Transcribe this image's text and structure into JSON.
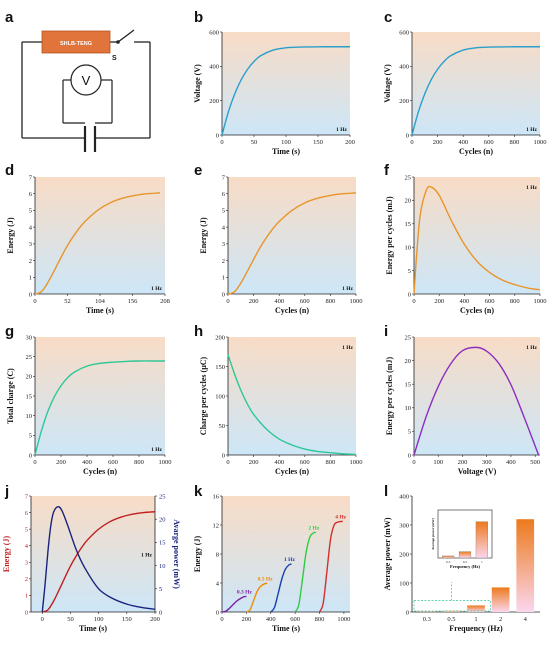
{
  "colors": {
    "blue": "#2b9fcb",
    "orange": "#e8952a",
    "green": "#2ec796",
    "purple": "#8b2fbf",
    "red": "#c01f1f",
    "navy": "#1a237e",
    "bg_top": "#f8dcc6",
    "bg_bottom": "#cde6f7"
  },
  "panels": [
    {
      "letter": "a",
      "type": "circuit",
      "teng_label": "SHLB-TENG",
      "switch_label": "S",
      "meter_label": "V"
    },
    {
      "letter": "b"
    },
    {
      "letter": "c"
    },
    {
      "letter": "d"
    },
    {
      "letter": "e"
    },
    {
      "letter": "f"
    },
    {
      "letter": "g"
    },
    {
      "letter": "h"
    },
    {
      "letter": "i"
    },
    {
      "letter": "j"
    },
    {
      "letter": "k"
    },
    {
      "letter": "l"
    }
  ],
  "chart_data": [
    {
      "id": "b",
      "type": "line",
      "xlabel": "Time (s)",
      "ylabel": "Voltage (V)",
      "note": "1 Hz",
      "xlim": [
        0,
        200
      ],
      "ylim": [
        0,
        600
      ],
      "xticks": [
        0,
        50,
        100,
        150,
        200
      ],
      "yticks": [
        0,
        200,
        400,
        600
      ],
      "series": [
        {
          "color": "#2b9fcb",
          "x": [
            0,
            10,
            20,
            30,
            40,
            50,
            60,
            80,
            100,
            120,
            140,
            160,
            180,
            200
          ],
          "y": [
            0,
            135,
            240,
            322,
            383,
            428,
            461,
            495,
            508,
            512,
            513,
            514,
            514,
            514
          ]
        }
      ]
    },
    {
      "id": "c",
      "type": "line",
      "xlabel": "Cycles (n)",
      "ylabel": "Voltage (V)",
      "note": "1 Hz",
      "xlim": [
        0,
        1000
      ],
      "ylim": [
        0,
        600
      ],
      "xticks": [
        0,
        200,
        400,
        600,
        800,
        1000
      ],
      "yticks": [
        0,
        200,
        400,
        600
      ],
      "series": [
        {
          "color": "#2b9fcb",
          "x": [
            0,
            50,
            100,
            150,
            200,
            250,
            300,
            400,
            500,
            600,
            700,
            800,
            900,
            1000
          ],
          "y": [
            0,
            135,
            240,
            322,
            383,
            428,
            461,
            495,
            508,
            512,
            513,
            514,
            514,
            514
          ]
        }
      ]
    },
    {
      "id": "d",
      "type": "line",
      "xlabel": "Time (s)",
      "ylabel": "Energy (J)",
      "note": "1 Hz",
      "xlim": [
        0,
        208
      ],
      "ylim": [
        0,
        7
      ],
      "xticks": [
        0,
        52,
        104,
        156,
        208
      ],
      "yticks": [
        0,
        1,
        2,
        3,
        4,
        5,
        6,
        7
      ],
      "series": [
        {
          "color": "#e8952a",
          "x": [
            0,
            10,
            20,
            30,
            40,
            50,
            60,
            70,
            80,
            100,
            120,
            140,
            160,
            180,
            200
          ],
          "y": [
            0,
            0.13,
            0.65,
            1.34,
            2.07,
            2.77,
            3.37,
            3.9,
            4.34,
            5.0,
            5.45,
            5.73,
            5.9,
            6.0,
            6.05
          ]
        }
      ]
    },
    {
      "id": "e",
      "type": "line",
      "xlabel": "Cycles (n)",
      "ylabel": "Energy (J)",
      "note": "1 Hz",
      "xlim": [
        0,
        1000
      ],
      "ylim": [
        0,
        7
      ],
      "xticks": [
        0,
        200,
        400,
        600,
        800,
        1000
      ],
      "yticks": [
        0,
        1,
        2,
        3,
        4,
        5,
        6,
        7
      ],
      "series": [
        {
          "color": "#e8952a",
          "x": [
            0,
            50,
            100,
            150,
            200,
            250,
            300,
            350,
            400,
            500,
            600,
            700,
            800,
            900,
            1000
          ],
          "y": [
            0,
            0.13,
            0.65,
            1.34,
            2.07,
            2.77,
            3.37,
            3.9,
            4.34,
            5.0,
            5.45,
            5.73,
            5.9,
            6.0,
            6.05
          ]
        }
      ]
    },
    {
      "id": "f",
      "type": "line",
      "xlabel": "Cycles (n)",
      "ylabel": "Energy per cycles (mJ)",
      "note": "1 Hz",
      "xlim": [
        0,
        1000
      ],
      "ylim": [
        0,
        25
      ],
      "xticks": [
        0,
        200,
        400,
        600,
        800,
        1000
      ],
      "yticks": [
        0,
        5,
        10,
        15,
        20,
        25
      ],
      "series": [
        {
          "color": "#e8952a",
          "x": [
            0,
            20,
            50,
            100,
            140,
            200,
            300,
            400,
            500,
            600,
            700,
            800,
            900,
            1000
          ],
          "y": [
            0,
            8,
            17,
            22.3,
            22.8,
            21.1,
            15.5,
            10.6,
            7.0,
            4.6,
            3.0,
            2.0,
            1.3,
            0.9
          ]
        }
      ]
    },
    {
      "id": "g",
      "type": "line",
      "xlabel": "Cycles (n)",
      "ylabel": "Total charge (C)",
      "note": "1 Hz",
      "xlim": [
        0,
        1000
      ],
      "ylim": [
        0,
        30
      ],
      "xticks": [
        0,
        200,
        400,
        600,
        800,
        1000
      ],
      "yticks": [
        0,
        5,
        10,
        15,
        20,
        25,
        30
      ],
      "series": [
        {
          "color": "#2ec796",
          "x": [
            0,
            50,
            100,
            150,
            200,
            250,
            300,
            400,
            500,
            600,
            700,
            800,
            900,
            1000
          ],
          "y": [
            0,
            6.2,
            11.2,
            14.9,
            17.6,
            19.6,
            21.0,
            22.6,
            23.3,
            23.6,
            23.8,
            23.9,
            23.9,
            23.9
          ]
        }
      ]
    },
    {
      "id": "h",
      "type": "line",
      "xlabel": "Cycles (n)",
      "ylabel": "Charge per cycles (μC)",
      "note": "1 Hz",
      "xlim": [
        0,
        1000
      ],
      "ylim": [
        0,
        200
      ],
      "xticks": [
        0,
        200,
        400,
        600,
        800,
        1000
      ],
      "yticks": [
        0,
        50,
        100,
        150,
        200
      ],
      "series": [
        {
          "color": "#2ec796",
          "x": [
            0,
            50,
            100,
            150,
            200,
            300,
            400,
            500,
            600,
            700,
            800,
            900,
            1000
          ],
          "y": [
            170,
            138,
            110,
            87,
            69,
            44,
            27,
            17,
            10,
            6,
            4,
            2,
            1
          ]
        }
      ]
    },
    {
      "id": "i",
      "type": "line",
      "xlabel": "Voltage (V)",
      "ylabel": "Energy per cycles (mJ)",
      "note": "1 Hz",
      "xlim": [
        0,
        520
      ],
      "ylim": [
        0,
        25
      ],
      "xticks": [
        0,
        100,
        200,
        300,
        400,
        500
      ],
      "yticks": [
        0,
        5,
        10,
        15,
        20,
        25
      ],
      "series": [
        {
          "color": "#8b2fbf",
          "x": [
            0,
            50,
            100,
            150,
            200,
            257,
            300,
            350,
            400,
            450,
            514
          ],
          "y": [
            0,
            8.1,
            14.5,
            19.2,
            22.1,
            22.8,
            22.0,
            19.4,
            14.9,
            8.6,
            0
          ]
        }
      ]
    },
    {
      "id": "j",
      "type": "line",
      "xlabel": "Time (s)",
      "ylabel": "Energy (J)",
      "y2label": "Avarge power (mW)",
      "note": "1 Hz",
      "xlim": [
        -20,
        200
      ],
      "ylim": [
        0,
        7
      ],
      "y2lim": [
        0,
        25
      ],
      "xticks": [
        0,
        50,
        100,
        150,
        200
      ],
      "yticks": [
        0,
        1,
        2,
        3,
        4,
        5,
        6,
        7
      ],
      "y2ticks": [
        0,
        5,
        10,
        15,
        20,
        25
      ],
      "series": [
        {
          "axis": "left",
          "color": "#c01f1f",
          "x": [
            0,
            10,
            20,
            30,
            40,
            50,
            60,
            70,
            80,
            100,
            120,
            140,
            160,
            180,
            200
          ],
          "y": [
            0,
            0.13,
            0.65,
            1.34,
            2.07,
            2.77,
            3.37,
            3.9,
            4.34,
            5.0,
            5.45,
            5.73,
            5.9,
            6.0,
            6.05
          ]
        },
        {
          "axis": "right",
          "color": "#1a237e",
          "x": [
            0,
            5,
            10,
            15,
            20,
            28,
            35,
            45,
            60,
            75,
            100,
            125,
            150,
            175,
            200
          ],
          "y": [
            0,
            6,
            13,
            18.5,
            21.5,
            22.7,
            21.8,
            18.7,
            13.5,
            9.6,
            5.0,
            2.9,
            1.7,
            1.0,
            0.6
          ]
        }
      ]
    },
    {
      "id": "k",
      "type": "line",
      "xlabel": "Time (s)",
      "ylabel": "Energy (J)",
      "xlim": [
        0,
        1050
      ],
      "ylim": [
        0,
        16
      ],
      "xticks": [
        0,
        200,
        400,
        600,
        800,
        1000
      ],
      "yticks": [
        0,
        4,
        8,
        12,
        16
      ],
      "series": [
        {
          "name": "0.3 Hz",
          "color": "#7b1fa2",
          "x": [
            0,
            30,
            60,
            90,
            120,
            150,
            180,
            200
          ],
          "y": [
            0,
            0.1,
            0.5,
            1.0,
            1.5,
            1.85,
            2.1,
            2.15
          ]
        },
        {
          "name": "0.5 Hz",
          "color": "#f08c00",
          "x": [
            200,
            230,
            260,
            290,
            320,
            350,
            370
          ],
          "y": [
            0,
            0.3,
            1.6,
            2.9,
            3.6,
            3.9,
            3.95
          ]
        },
        {
          "name": "1 Hz",
          "color": "#1a3fb0",
          "x": [
            400,
            430,
            460,
            490,
            520,
            550,
            570
          ],
          "y": [
            0,
            0.6,
            2.5,
            4.5,
            5.9,
            6.5,
            6.6
          ]
        },
        {
          "name": "2 Hz",
          "color": "#2ecc40",
          "x": [
            600,
            630,
            660,
            690,
            720,
            750,
            770
          ],
          "y": [
            0,
            1.0,
            4.5,
            8.2,
            10.3,
            10.9,
            11.0
          ]
        },
        {
          "name": "4 Hz",
          "color": "#d32f2f",
          "x": [
            800,
            830,
            860,
            890,
            920,
            950,
            990
          ],
          "y": [
            0,
            1.2,
            5.5,
            10.0,
            12.0,
            12.4,
            12.5
          ]
        }
      ]
    },
    {
      "id": "l",
      "type": "bar",
      "xlabel": "Frequency (Hz)",
      "ylabel": "Average power (mW)",
      "categories": [
        "0.3",
        "0.5",
        "1",
        "2",
        "4"
      ],
      "values": [
        1.3,
        4.0,
        22.7,
        84.8,
        320
      ],
      "ylim": [
        0,
        400
      ],
      "yticks": [
        0,
        100,
        200,
        300,
        400
      ],
      "inset": {
        "xlabel": "Frequency (Hz)",
        "ylabel": "Average power (mW)",
        "categories": [
          "0.3",
          "0.5",
          "1"
        ],
        "values": [
          1.3,
          4.0,
          22.7
        ],
        "ylim": [
          0,
          30
        ]
      }
    }
  ]
}
